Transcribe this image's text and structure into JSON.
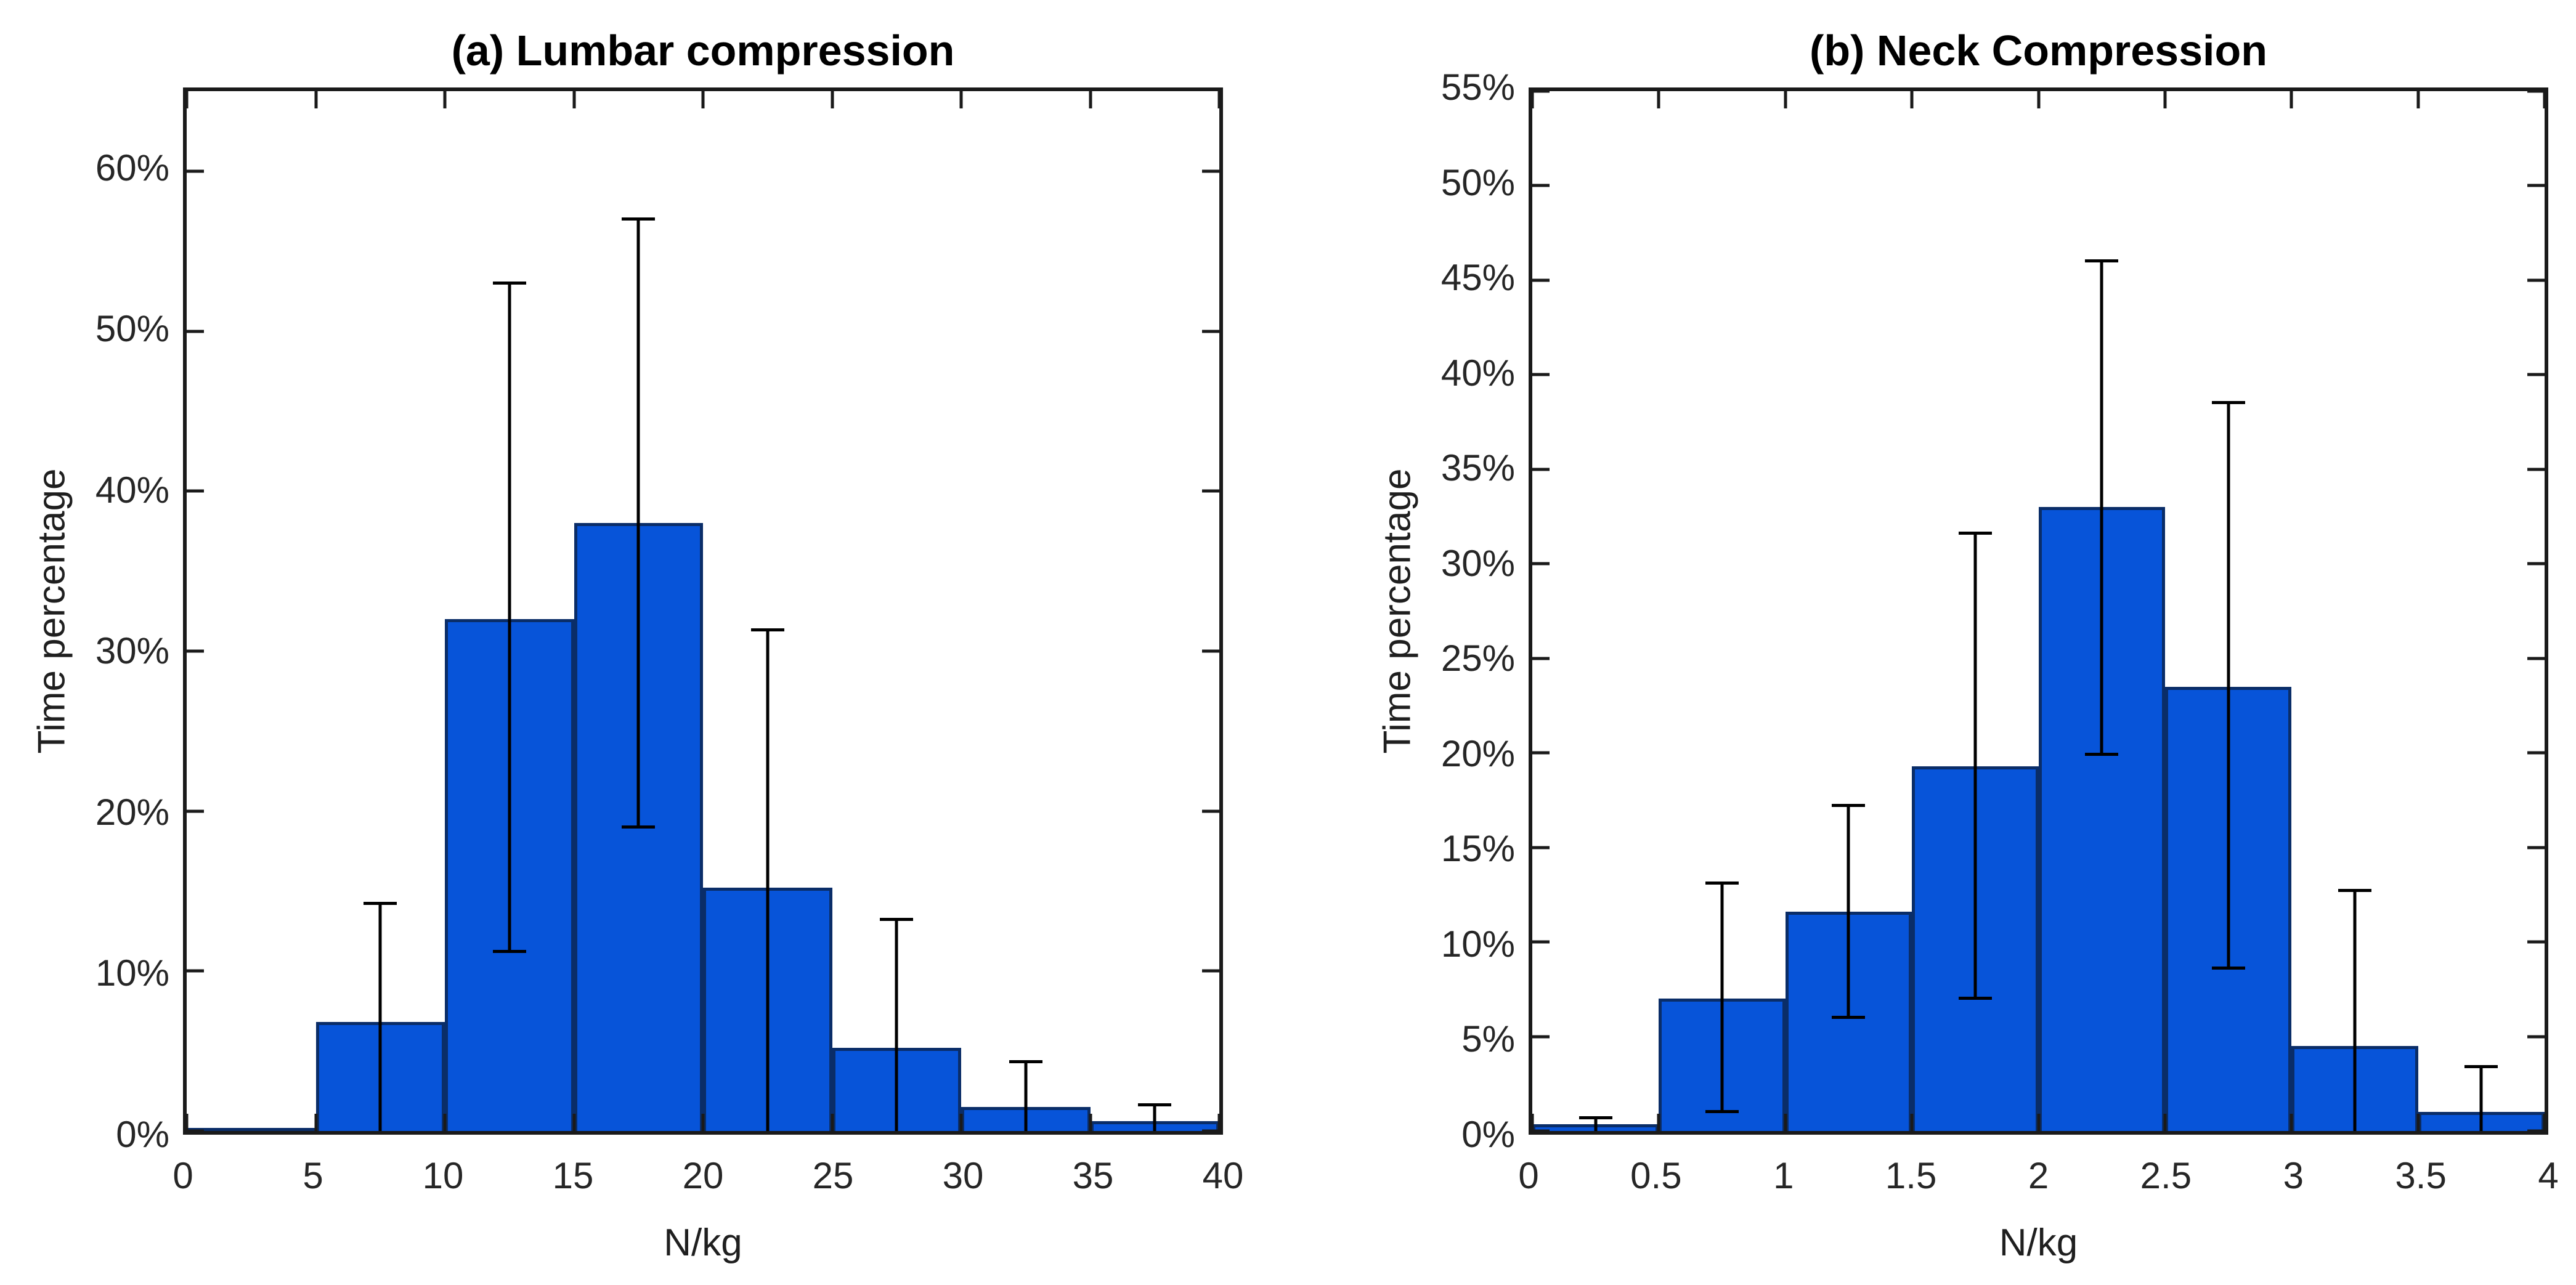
{
  "figure": {
    "background_color": "#ffffff",
    "axis_color": "#1a1a1a",
    "tick_label_color": "#262626"
  },
  "chart_data": [
    {
      "panel": "a",
      "type": "bar",
      "title": "(a) Lumbar compression",
      "xlabel": "N/kg",
      "ylabel": "Time percentage",
      "legend": null,
      "grid": false,
      "xlim": [
        0,
        40
      ],
      "ylim": [
        0,
        65
      ],
      "bar_color": "#0754d9",
      "bar_edge_color": "#0a2d68",
      "error_bar_color": "#000000",
      "x_ticks": [
        {
          "value": 0,
          "label": "0"
        },
        {
          "value": 5,
          "label": "5"
        },
        {
          "value": 10,
          "label": "10"
        },
        {
          "value": 15,
          "label": "15"
        },
        {
          "value": 20,
          "label": "20"
        },
        {
          "value": 25,
          "label": "25"
        },
        {
          "value": 30,
          "label": "30"
        },
        {
          "value": 35,
          "label": "35"
        },
        {
          "value": 40,
          "label": "40"
        }
      ],
      "y_ticks": [
        {
          "value": 0,
          "label": "0%"
        },
        {
          "value": 10,
          "label": "10%"
        },
        {
          "value": 20,
          "label": "20%"
        },
        {
          "value": 30,
          "label": "30%"
        },
        {
          "value": 40,
          "label": "40%"
        },
        {
          "value": 50,
          "label": "50%"
        },
        {
          "value": 60,
          "label": "60%"
        }
      ],
      "bins": [
        {
          "range": [
            0,
            5
          ],
          "value": 0.1,
          "err_low": null,
          "err_high": null
        },
        {
          "range": [
            5,
            10
          ],
          "value": 6.8,
          "err_low": null,
          "err_high": 14.2
        },
        {
          "range": [
            10,
            15
          ],
          "value": 32.0,
          "err_low": 11.2,
          "err_high": 53.0
        },
        {
          "range": [
            15,
            20
          ],
          "value": 38.0,
          "err_low": 19.0,
          "err_high": 57.0
        },
        {
          "range": [
            20,
            25
          ],
          "value": 15.2,
          "err_low": null,
          "err_high": 31.3
        },
        {
          "range": [
            25,
            30
          ],
          "value": 5.2,
          "err_low": null,
          "err_high": 13.2
        },
        {
          "range": [
            30,
            35
          ],
          "value": 1.5,
          "err_low": null,
          "err_high": 4.3
        },
        {
          "range": [
            35,
            40
          ],
          "value": 0.6,
          "err_low": null,
          "err_high": 1.6
        }
      ]
    },
    {
      "panel": "b",
      "type": "bar",
      "title": "(b) Neck Compression",
      "xlabel": "N/kg",
      "ylabel": "Time percentage",
      "legend": null,
      "grid": false,
      "xlim": [
        0,
        4
      ],
      "ylim": [
        0,
        55
      ],
      "bar_color": "#0754d9",
      "bar_edge_color": "#0a2d68",
      "error_bar_color": "#000000",
      "x_ticks": [
        {
          "value": 0,
          "label": "0"
        },
        {
          "value": 0.5,
          "label": "0.5"
        },
        {
          "value": 1,
          "label": "1"
        },
        {
          "value": 1.5,
          "label": "1.5"
        },
        {
          "value": 2,
          "label": "2"
        },
        {
          "value": 2.5,
          "label": "2.5"
        },
        {
          "value": 3,
          "label": "3"
        },
        {
          "value": 3.5,
          "label": "3.5"
        },
        {
          "value": 4,
          "label": "4"
        }
      ],
      "y_ticks": [
        {
          "value": 0,
          "label": "0%"
        },
        {
          "value": 5,
          "label": "5%"
        },
        {
          "value": 10,
          "label": "10%"
        },
        {
          "value": 15,
          "label": "15%"
        },
        {
          "value": 20,
          "label": "20%"
        },
        {
          "value": 25,
          "label": "25%"
        },
        {
          "value": 30,
          "label": "30%"
        },
        {
          "value": 35,
          "label": "35%"
        },
        {
          "value": 40,
          "label": "40%"
        },
        {
          "value": 45,
          "label": "45%"
        },
        {
          "value": 50,
          "label": "50%"
        },
        {
          "value": 55,
          "label": "55%"
        }
      ],
      "bins": [
        {
          "range": [
            0,
            0.5
          ],
          "value": 0.35,
          "err_low": null,
          "err_high": 0.7
        },
        {
          "range": [
            0.5,
            1
          ],
          "value": 7.0,
          "err_low": 1.0,
          "err_high": 13.1
        },
        {
          "range": [
            1,
            1.5
          ],
          "value": 11.6,
          "err_low": 6.0,
          "err_high": 17.2
        },
        {
          "range": [
            1.5,
            2
          ],
          "value": 19.3,
          "err_low": 7.0,
          "err_high": 31.6
        },
        {
          "range": [
            2,
            2.5
          ],
          "value": 33.0,
          "err_low": 19.9,
          "err_high": 46.0
        },
        {
          "range": [
            2.5,
            3
          ],
          "value": 23.5,
          "err_low": 8.6,
          "err_high": 38.5
        },
        {
          "range": [
            3,
            3.5
          ],
          "value": 4.5,
          "err_low": null,
          "err_high": 12.7
        },
        {
          "range": [
            3.5,
            4
          ],
          "value": 1.0,
          "err_low": null,
          "err_high": 3.4
        }
      ]
    }
  ]
}
